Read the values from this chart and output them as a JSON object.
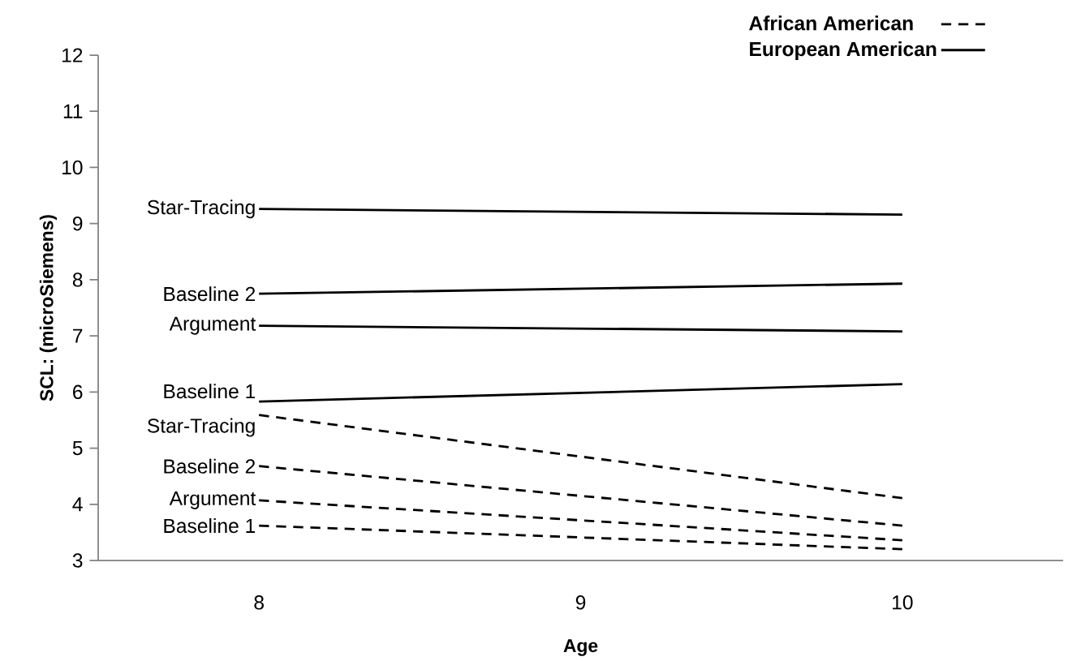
{
  "chart_data": {
    "type": "line",
    "xlabel": "Age",
    "ylabel": "SCL: (microSiemens)",
    "x": [
      8,
      10
    ],
    "xlim": [
      7.5,
      10.5
    ],
    "xticks": [
      8,
      9,
      10
    ],
    "ylim": [
      3,
      12
    ],
    "yticks": [
      3,
      4,
      5,
      6,
      7,
      8,
      9,
      10,
      11,
      12
    ],
    "grid": false,
    "legend": "top right",
    "marker": "none",
    "series": [
      {
        "name": "African American",
        "color": "#000000",
        "line_style": "dashed",
        "values": [
          null,
          null
        ]
      },
      {
        "name": "European American",
        "color": "#000000",
        "line_style": "solid",
        "values": [
          null,
          null
        ]
      },
      {
        "name": "Star-Tracing",
        "color": "#000000",
        "line_style": "solid",
        "values": [
          9.26,
          9.16
        ]
      },
      {
        "name": "Baseline 2",
        "color": "#000000",
        "line_style": "solid",
        "values": [
          7.75,
          7.93
        ]
      },
      {
        "name": "Argument",
        "color": "#000000",
        "line_style": "solid",
        "values": [
          7.18,
          7.08
        ]
      },
      {
        "name": "Baseline 1",
        "color": "#000000",
        "line_style": "solid",
        "values": [
          5.83,
          6.14
        ]
      },
      {
        "name": "Star-Tracing",
        "color": "#000000",
        "line_style": "dashed",
        "values": [
          5.59,
          4.11
        ]
      },
      {
        "name": "Baseline 2",
        "color": "#000000",
        "line_style": "dashed",
        "values": [
          4.68,
          3.62
        ]
      },
      {
        "name": "Argument",
        "color": "#000000",
        "line_style": "dashed",
        "values": [
          4.07,
          3.36
        ]
      },
      {
        "name": "Baseline 1",
        "color": "#000000",
        "line_style": "dashed",
        "values": [
          3.62,
          3.2
        ]
      }
    ]
  }
}
